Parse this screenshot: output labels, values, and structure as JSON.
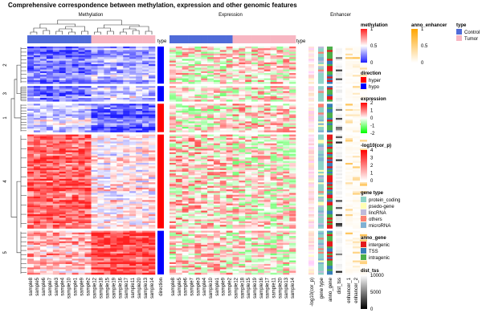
{
  "chart_data": {
    "type": "heatmap",
    "title": "Comprehensive correspondence between methylation, expression and other genomic features",
    "panels": {
      "methylation": "Methylation",
      "expression": "Expression",
      "enhancer": "Enhancer"
    },
    "sample_order": [
      "sample8",
      "sample5",
      "sample6",
      "sample7",
      "sample3",
      "sample4",
      "sample10",
      "sample1",
      "sample9",
      "sample2",
      "sample12",
      "sample18",
      "sample15",
      "sample19",
      "sample16",
      "sample17",
      "sample11",
      "sample20",
      "sample13",
      "sample14"
    ],
    "sample_type": [
      "Control",
      "Control",
      "Control",
      "Control",
      "Control",
      "Control",
      "Control",
      "Control",
      "Control",
      "Control",
      "Tumor",
      "Tumor",
      "Tumor",
      "Tumor",
      "Tumor",
      "Tumor",
      "Tumor",
      "Tumor",
      "Tumor",
      "Tumor"
    ],
    "row_clusters": [
      {
        "label": "2",
        "share": 0.17,
        "direction": "hypo",
        "meth_control": 0.2,
        "meth_tumor": 0.34,
        "expr_control": 0.05,
        "expr_tumor": 0.2
      },
      {
        "label": "3",
        "share": 0.07,
        "direction": "hypo",
        "meth_control": 0.22,
        "meth_tumor": 0.42,
        "expr_control": 0.0,
        "expr_tumor": 0.1
      },
      {
        "label": "1",
        "share": 0.13,
        "direction": "hyper",
        "meth_control": 0.42,
        "meth_tumor": 0.18,
        "expr_control": -0.05,
        "expr_tumor": 0.25
      },
      {
        "label": "4",
        "share": 0.43,
        "direction": "hyper",
        "meth_control": 0.86,
        "meth_tumor": 0.55,
        "expr_control": 0.3,
        "expr_tumor": 0.05
      },
      {
        "label": "5",
        "share": 0.2,
        "direction": "hypo",
        "meth_control": 0.66,
        "meth_tumor": 0.92,
        "expr_control": 0.2,
        "expr_tumor": 0.0
      }
    ],
    "row_annotations": [
      "-log10(cor_p)",
      "gene_type",
      "anno_gene",
      "dist_tss"
    ],
    "row_annotation_labels": [
      "type",
      "-log10(cor_p)",
      "gene type",
      "anno_gene",
      "dist_tss"
    ],
    "enhancer_columns": [
      "enhancer_1",
      "enhancer_2",
      "enhancer_3"
    ],
    "legends": [
      {
        "title": "methylation",
        "kind": "gradient",
        "colors": [
          "#1f1fff",
          "#ffffff",
          "#ff2020"
        ],
        "ticks": [
          "1",
          "0.5",
          "0"
        ]
      },
      {
        "title": "direction",
        "kind": "discrete",
        "items": [
          {
            "label": "hyper",
            "color": "#ff0000"
          },
          {
            "label": "hypo",
            "color": "#0000ff"
          }
        ]
      },
      {
        "title": "expression",
        "kind": "gradient",
        "colors": [
          "#00ff00",
          "#ffffff",
          "#ff0000"
        ],
        "ticks": [
          "2",
          "1",
          "0",
          "-1",
          "-2"
        ]
      },
      {
        "title": "-log10(cor_p)",
        "kind": "gradient",
        "colors": [
          "#ffffff",
          "#ff0000"
        ],
        "ticks": [
          "4",
          "3",
          "2",
          "1",
          "0"
        ]
      },
      {
        "title": "gene type",
        "kind": "discrete",
        "items": [
          {
            "label": "protein_coding",
            "color": "#8dd3c7"
          },
          {
            "label": "psedo-gene",
            "color": "#ffffb3"
          },
          {
            "label": "lincRNA",
            "color": "#bebada"
          },
          {
            "label": "others",
            "color": "#fb8072"
          },
          {
            "label": "microRNA",
            "color": "#80b1d3"
          }
        ]
      },
      {
        "title": "anno_gene",
        "kind": "discrete",
        "items": [
          {
            "label": "intergenic",
            "color": "#e41a1c"
          },
          {
            "label": "TSS",
            "color": "#377eb8"
          },
          {
            "label": "intragenic",
            "color": "#4daf4a"
          }
        ]
      },
      {
        "title": "dist_tss",
        "kind": "gradient",
        "colors": [
          "#000000",
          "#ffffff"
        ],
        "ticks": [
          "10000",
          "5000",
          "0"
        ]
      },
      {
        "title": "anno_enhancer",
        "kind": "gradient",
        "colors": [
          "#ffffff",
          "#ffa500"
        ],
        "ticks": [
          "1",
          "0.5",
          "0"
        ]
      },
      {
        "title": "type",
        "kind": "discrete",
        "items": [
          {
            "label": "Control",
            "color": "#4f6bd8"
          },
          {
            "label": "Tumor",
            "color": "#f7b6c2"
          }
        ]
      }
    ]
  }
}
